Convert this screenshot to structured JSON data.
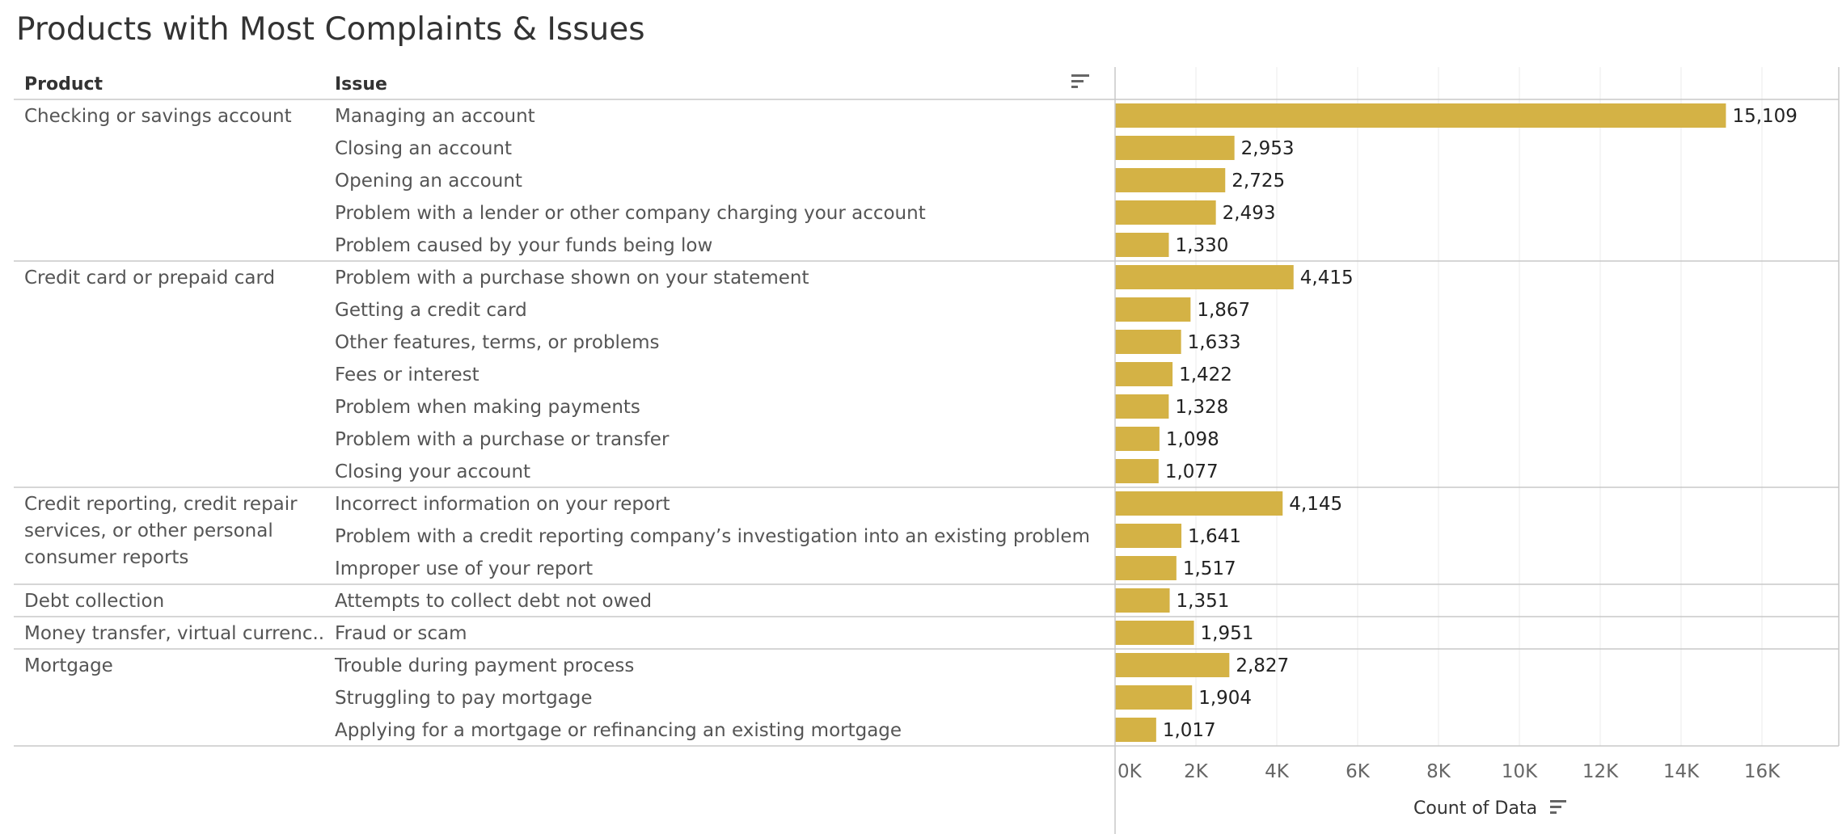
{
  "title": "Products with Most Complaints & Issues",
  "headers": {
    "product": "Product",
    "issue": "Issue"
  },
  "colors": {
    "bar": "#D4B245",
    "grid": "#EBEBEB",
    "divider": "#C8C8C8"
  },
  "icons": {
    "header_sort": "sort-descending-icon",
    "axis_sort": "sort-descending-icon"
  },
  "chart_data": {
    "type": "bar",
    "orientation": "horizontal",
    "title": "Products with Most Complaints & Issues",
    "xlabel": "Count of Data",
    "xlim": [
      0,
      18000
    ],
    "xticks": [
      0,
      2000,
      4000,
      6000,
      8000,
      10000,
      12000,
      14000,
      16000
    ],
    "xtick_labels": [
      "0K",
      "2K",
      "4K",
      "6K",
      "8K",
      "10K",
      "12K",
      "14K",
      "16K"
    ],
    "grid": true,
    "groups": [
      {
        "product": "Checking or savings account",
        "product_lines": [
          "Checking or savings account"
        ],
        "issues": [
          {
            "issue": "Managing an account",
            "value": 15109,
            "label": "15,109"
          },
          {
            "issue": "Closing an account",
            "value": 2953,
            "label": "2,953"
          },
          {
            "issue": "Opening an account",
            "value": 2725,
            "label": "2,725"
          },
          {
            "issue": "Problem with a lender or other company charging your account",
            "value": 2493,
            "label": "2,493"
          },
          {
            "issue": "Problem caused by your funds being low",
            "value": 1330,
            "label": "1,330"
          }
        ]
      },
      {
        "product": "Credit card or prepaid card",
        "product_lines": [
          "Credit card or prepaid card"
        ],
        "issues": [
          {
            "issue": "Problem with a purchase shown on your statement",
            "value": 4415,
            "label": "4,415"
          },
          {
            "issue": "Getting a credit card",
            "value": 1867,
            "label": "1,867"
          },
          {
            "issue": "Other features, terms, or problems",
            "value": 1633,
            "label": "1,633"
          },
          {
            "issue": "Fees or interest",
            "value": 1422,
            "label": "1,422"
          },
          {
            "issue": "Problem when making payments",
            "value": 1328,
            "label": "1,328"
          },
          {
            "issue": "Problem with a purchase or transfer",
            "value": 1098,
            "label": "1,098"
          },
          {
            "issue": "Closing your account",
            "value": 1077,
            "label": "1,077"
          }
        ]
      },
      {
        "product": "Credit reporting, credit repair services, or other personal consumer reports",
        "product_lines": [
          "Credit reporting, credit repair",
          "services, or other personal",
          "consumer reports"
        ],
        "issues": [
          {
            "issue": "Incorrect information on your report",
            "value": 4145,
            "label": "4,145"
          },
          {
            "issue": "Problem with a credit reporting company’s investigation into an existing problem",
            "value": 1641,
            "label": "1,641"
          },
          {
            "issue": "Improper use of your report",
            "value": 1517,
            "label": "1,517"
          }
        ]
      },
      {
        "product": "Debt collection",
        "product_lines": [
          "Debt collection"
        ],
        "issues": [
          {
            "issue": "Attempts to collect debt not owed",
            "value": 1351,
            "label": "1,351"
          }
        ]
      },
      {
        "product": "Money transfer, virtual currenc..",
        "product_lines": [
          "Money transfer, virtual currenc.."
        ],
        "issues": [
          {
            "issue": "Fraud or scam",
            "value": 1951,
            "label": "1,951"
          }
        ]
      },
      {
        "product": "Mortgage",
        "product_lines": [
          "Mortgage"
        ],
        "issues": [
          {
            "issue": "Trouble during payment process",
            "value": 2827,
            "label": "2,827"
          },
          {
            "issue": "Struggling to pay mortgage",
            "value": 1904,
            "label": "1,904"
          },
          {
            "issue": "Applying for a mortgage or refinancing an existing mortgage",
            "value": 1017,
            "label": "1,017"
          }
        ]
      }
    ]
  }
}
